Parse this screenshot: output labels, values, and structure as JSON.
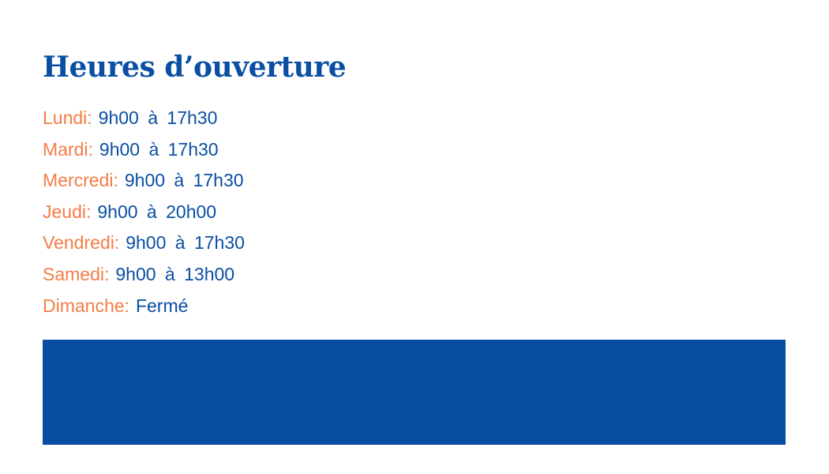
{
  "title": "Heures d’ouverture",
  "hours": [
    {
      "day": "Lundi:",
      "time": "9h00 à 17h30"
    },
    {
      "day": "Mardi:",
      "time": "9h00 à 17h30"
    },
    {
      "day": "Mercredi:",
      "time": "9h00 à 17h30"
    },
    {
      "day": "Jeudi:",
      "time": "9h00 à 20h00"
    },
    {
      "day": "Vendredi:",
      "time": "9h00 à 17h30"
    },
    {
      "day": "Samedi:",
      "time": "9h00 à 13h00"
    },
    {
      "day": "Dimanche:",
      "time": "Fermé"
    }
  ],
  "colors": {
    "blue": "#0a4fa3",
    "orange": "#f47c45",
    "band": "#074ea1"
  }
}
